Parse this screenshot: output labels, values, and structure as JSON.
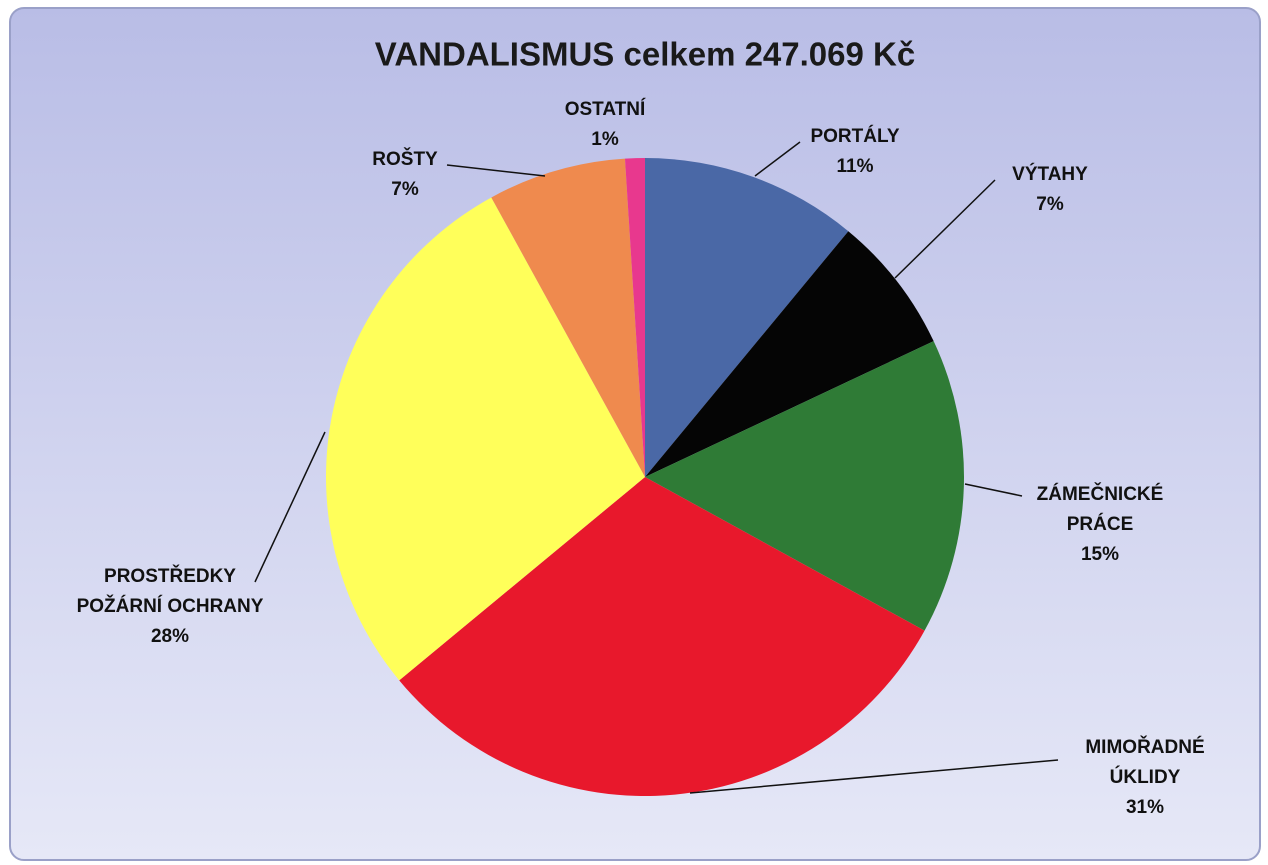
{
  "chart_data": {
    "type": "pie",
    "title": "VANDALISMUS celkem 247.069 Kč",
    "categories": [
      "PORTÁLY",
      "VÝTAHY",
      "ZÁMEČNICKÉ PRÁCE",
      "MIMOŘADNÉ ÚKLIDY",
      "PROSTŘEDKY POŽÁRNÍ OCHRANY",
      "ROŠTY",
      "OSTATNÍ"
    ],
    "values": [
      11,
      7,
      15,
      31,
      28,
      7,
      1
    ],
    "value_labels": [
      "11%",
      "7%",
      "15%",
      "31%",
      "28%",
      "7%",
      "1%"
    ],
    "colors": [
      "#4a68a6",
      "#050505",
      "#2f7b36",
      "#e8182c",
      "#ffff5a",
      "#ef8a4e",
      "#e8388e"
    ]
  }
}
